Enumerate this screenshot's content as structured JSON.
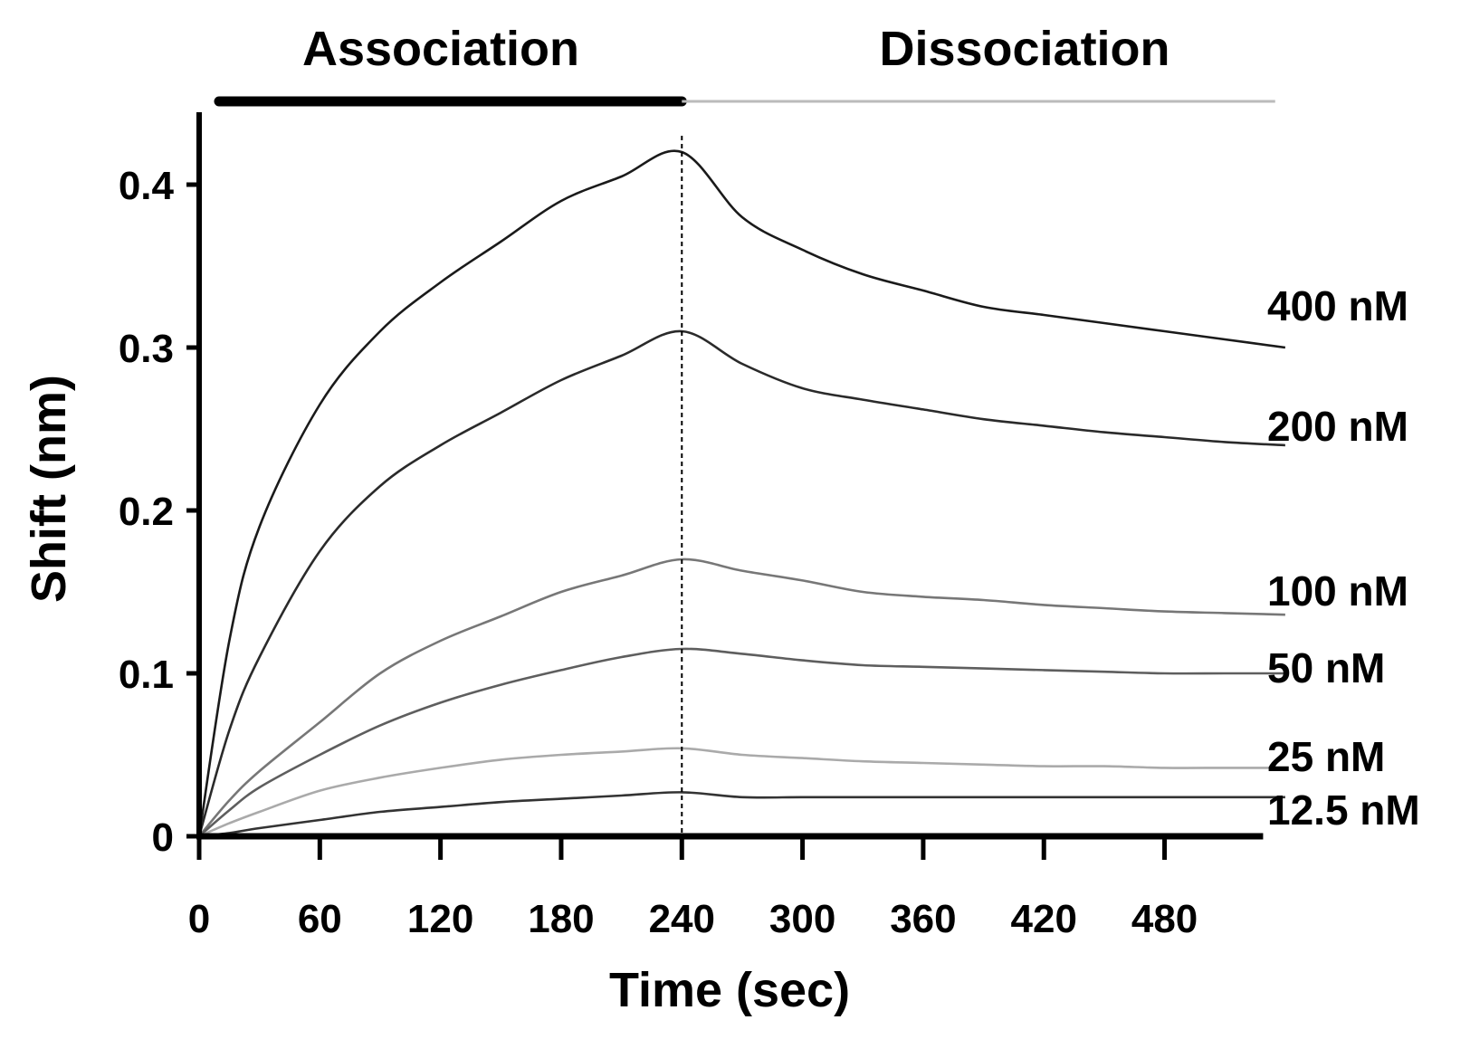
{
  "chart_data": {
    "type": "line",
    "title": "",
    "xlabel": "Time (sec)",
    "ylabel": "Shift (nm)",
    "xlim": [
      0,
      545
    ],
    "ylim": [
      0,
      0.44
    ],
    "grid": false,
    "phases": [
      {
        "label": "Association",
        "range": [
          0,
          240
        ]
      },
      {
        "label": "Dissociation",
        "range": [
          240,
          535
        ]
      }
    ],
    "xticks": [
      0,
      60,
      120,
      180,
      240,
      300,
      360,
      420,
      480
    ],
    "xtick_labels": [
      "0",
      "60",
      "120",
      "180",
      "240",
      "300",
      "360",
      "420",
      "480"
    ],
    "yticks": [
      0,
      0.1,
      0.2,
      0.3,
      0.4
    ],
    "ytick_labels": [
      "0",
      "0.1",
      "0.2",
      "0.3",
      "0.4"
    ],
    "x": [
      0,
      15,
      30,
      60,
      90,
      120,
      150,
      180,
      210,
      240,
      270,
      300,
      330,
      360,
      390,
      420,
      450,
      480,
      510,
      540
    ],
    "series": [
      {
        "name": "400 nM",
        "color": "#1a1a1a",
        "values": [
          0,
          0.12,
          0.19,
          0.265,
          0.31,
          0.34,
          0.365,
          0.39,
          0.405,
          0.42,
          0.38,
          0.36,
          0.345,
          0.335,
          0.325,
          0.32,
          0.315,
          0.31,
          0.305,
          0.3
        ]
      },
      {
        "name": "200 nM",
        "color": "#2a2a2a",
        "values": [
          0,
          0.065,
          0.11,
          0.175,
          0.215,
          0.24,
          0.26,
          0.28,
          0.295,
          0.31,
          0.29,
          0.275,
          0.268,
          0.262,
          0.256,
          0.252,
          0.248,
          0.245,
          0.242,
          0.24
        ]
      },
      {
        "name": "100 nM",
        "color": "#777777",
        "values": [
          0,
          0.022,
          0.04,
          0.07,
          0.1,
          0.12,
          0.135,
          0.15,
          0.16,
          0.17,
          0.163,
          0.157,
          0.15,
          0.147,
          0.145,
          0.142,
          0.14,
          0.138,
          0.137,
          0.136
        ]
      },
      {
        "name": "50 nM",
        "color": "#5e5e5e",
        "values": [
          0,
          0.016,
          0.03,
          0.05,
          0.068,
          0.082,
          0.093,
          0.102,
          0.11,
          0.115,
          0.112,
          0.108,
          0.105,
          0.104,
          0.103,
          0.102,
          0.101,
          0.1,
          0.1,
          0.1
        ]
      },
      {
        "name": "25 nM",
        "color": "#aaaaaa",
        "values": [
          0,
          0.008,
          0.015,
          0.028,
          0.036,
          0.042,
          0.047,
          0.05,
          0.052,
          0.054,
          0.05,
          0.048,
          0.046,
          0.045,
          0.044,
          0.043,
          0.043,
          0.042,
          0.042,
          0.042
        ]
      },
      {
        "name": "12.5 nM",
        "color": "#333333",
        "values": [
          0,
          0.002,
          0.005,
          0.01,
          0.015,
          0.018,
          0.021,
          0.023,
          0.025,
          0.027,
          0.024,
          0.024,
          0.024,
          0.024,
          0.024,
          0.024,
          0.024,
          0.024,
          0.024,
          0.024
        ]
      }
    ]
  }
}
